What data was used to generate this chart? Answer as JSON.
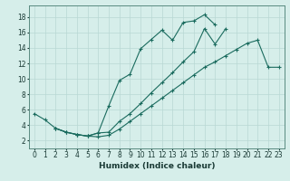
{
  "xlabel": "Humidex (Indice chaleur)",
  "background_color": "#d6eeea",
  "grid_color": "#b8d8d4",
  "line_color": "#1a6b5e",
  "xlim": [
    -0.5,
    23.5
  ],
  "ylim": [
    1.0,
    19.5
  ],
  "xticks": [
    0,
    1,
    2,
    3,
    4,
    5,
    6,
    7,
    8,
    9,
    10,
    11,
    12,
    13,
    14,
    15,
    16,
    17,
    18,
    19,
    20,
    21,
    22,
    23
  ],
  "yticks": [
    2,
    4,
    6,
    8,
    10,
    12,
    14,
    16,
    18
  ],
  "line1_x": [
    0,
    1,
    2,
    3,
    4,
    5,
    6,
    7,
    8,
    9,
    10,
    11,
    12,
    13,
    14,
    15,
    16,
    17
  ],
  "line1_y": [
    5.5,
    4.7,
    3.6,
    3.1,
    2.8,
    2.6,
    3.0,
    6.5,
    9.8,
    10.6,
    13.9,
    15.1,
    16.3,
    15.0,
    17.3,
    17.5,
    18.3,
    17.0
  ],
  "line2_x": [
    2,
    3,
    4,
    5,
    6,
    7,
    8,
    9,
    10,
    11,
    12,
    13,
    14,
    15,
    16,
    17,
    18
  ],
  "line2_y": [
    3.6,
    3.1,
    2.8,
    2.6,
    3.0,
    3.1,
    4.5,
    5.5,
    6.8,
    8.2,
    9.5,
    10.8,
    12.2,
    13.5,
    16.5,
    14.5,
    16.5
  ],
  "line3_x": [
    2,
    3,
    4,
    5,
    6,
    7,
    8,
    9,
    10,
    11,
    12,
    13,
    14,
    15,
    16,
    17,
    18,
    19,
    20,
    21,
    22,
    23
  ],
  "line3_y": [
    3.6,
    3.1,
    2.8,
    2.6,
    2.5,
    2.7,
    3.5,
    4.5,
    5.5,
    6.5,
    7.5,
    8.5,
    9.5,
    10.5,
    11.5,
    12.2,
    13.0,
    13.8,
    14.6,
    15.0,
    11.5,
    11.5
  ]
}
